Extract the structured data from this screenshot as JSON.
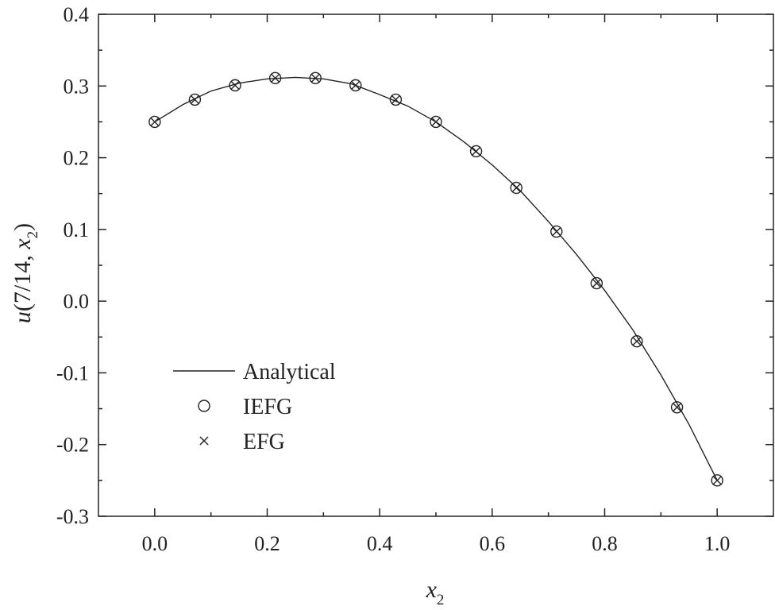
{
  "chart_data": {
    "type": "line",
    "xlabel": {
      "main": "x",
      "sub": "2"
    },
    "ylabel": {
      "italic": "u",
      "prefix": "(7/14, ",
      "var": "x",
      "sub": "2",
      "suffix": ")"
    },
    "xlim": [
      -0.1,
      1.1
    ],
    "ylim": [
      -0.3,
      0.4
    ],
    "xticks": [
      0.0,
      0.2,
      0.4,
      0.6,
      0.8,
      1.0
    ],
    "xtick_labels": [
      "0.0",
      "0.2",
      "0.4",
      "0.6",
      "0.8",
      "1.0"
    ],
    "yticks": [
      -0.3,
      -0.2,
      -0.1,
      0.0,
      0.1,
      0.2,
      0.3,
      0.4
    ],
    "ytick_labels": [
      "-0.3",
      "-0.2",
      "-0.1",
      "0.0",
      "0.1",
      "0.2",
      "0.3",
      "0.4"
    ],
    "grid": false,
    "legend_position": "lower-left",
    "series": [
      {
        "name": "Analytical",
        "style": "line",
        "x": [
          0.0,
          0.05,
          0.1,
          0.15,
          0.2,
          0.25,
          0.3,
          0.35,
          0.4,
          0.45,
          0.5,
          0.55,
          0.6,
          0.65,
          0.7,
          0.75,
          0.8,
          0.85,
          0.9,
          0.95,
          1.0
        ],
        "y": [
          0.25,
          0.274,
          0.293,
          0.304,
          0.31,
          0.312,
          0.31,
          0.303,
          0.288,
          0.272,
          0.25,
          0.222,
          0.19,
          0.154,
          0.111,
          0.065,
          0.015,
          -0.04,
          -0.103,
          -0.172,
          -0.25
        ]
      },
      {
        "name": "IEFG",
        "style": "circle",
        "x": [
          0.0,
          0.0714,
          0.1429,
          0.2143,
          0.2857,
          0.3571,
          0.4286,
          0.5,
          0.5714,
          0.6429,
          0.7143,
          0.7857,
          0.8571,
          0.9286,
          1.0
        ],
        "y": [
          0.25,
          0.281,
          0.301,
          0.311,
          0.311,
          0.301,
          0.281,
          0.25,
          0.209,
          0.158,
          0.097,
          0.025,
          -0.056,
          -0.148,
          -0.25
        ]
      },
      {
        "name": "EFG",
        "style": "cross",
        "x": [
          0.0,
          0.0714,
          0.1429,
          0.2143,
          0.2857,
          0.3571,
          0.4286,
          0.5,
          0.5714,
          0.6429,
          0.7143,
          0.7857,
          0.8571,
          0.9286,
          1.0
        ],
        "y": [
          0.25,
          0.281,
          0.301,
          0.311,
          0.311,
          0.301,
          0.281,
          0.25,
          0.209,
          0.158,
          0.097,
          0.025,
          -0.056,
          -0.148,
          -0.25
        ]
      }
    ]
  }
}
